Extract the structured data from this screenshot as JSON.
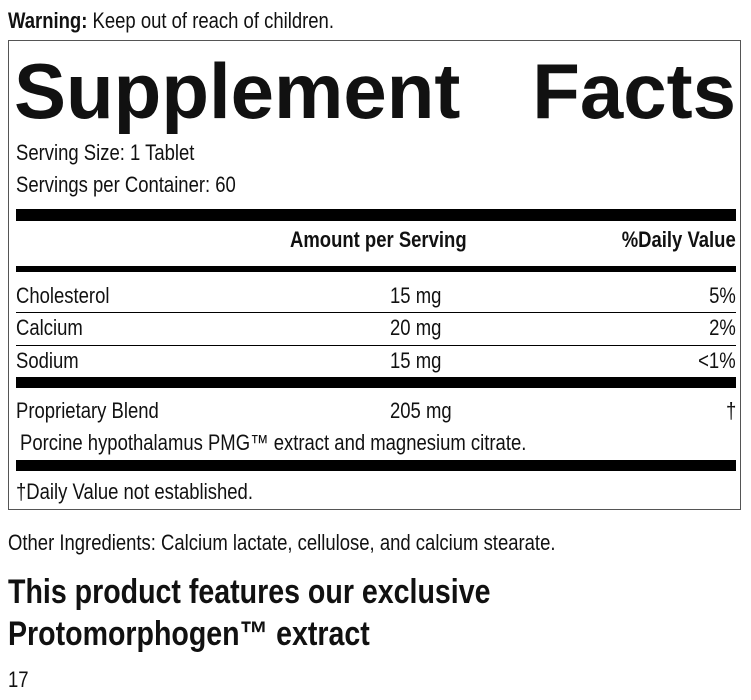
{
  "warning": {
    "label": "Warning:",
    "text": "Keep out of reach of children."
  },
  "facts": {
    "title_word1": "Supplement",
    "title_word2": "Facts",
    "serving_size": "Serving Size: 1 Tablet",
    "servings_per_container": "Servings per Container: 60",
    "header_amount": "Amount per Serving",
    "header_dv": "%Daily Value",
    "rows": [
      {
        "name": "Cholesterol",
        "amount": "15 mg",
        "dv": "5%"
      },
      {
        "name": "Calcium",
        "amount": "20 mg",
        "dv": "2%"
      },
      {
        "name": "Sodium",
        "amount": "15 mg",
        "dv": "<1%"
      }
    ],
    "blend": {
      "name": "Proprietary Blend",
      "amount": "205 mg",
      "dv": "†",
      "ingredients": "Porcine hypothalamus PMG™ extract and magnesium citrate."
    },
    "footnote": "†Daily Value not established."
  },
  "other_ingredients": "Other Ingredients: Calcium lactate, cellulose, and calcium stearate.",
  "feature_line1": "This product features our exclusive",
  "feature_line2": "Protomorphogen™ extract",
  "page_number": "17"
}
